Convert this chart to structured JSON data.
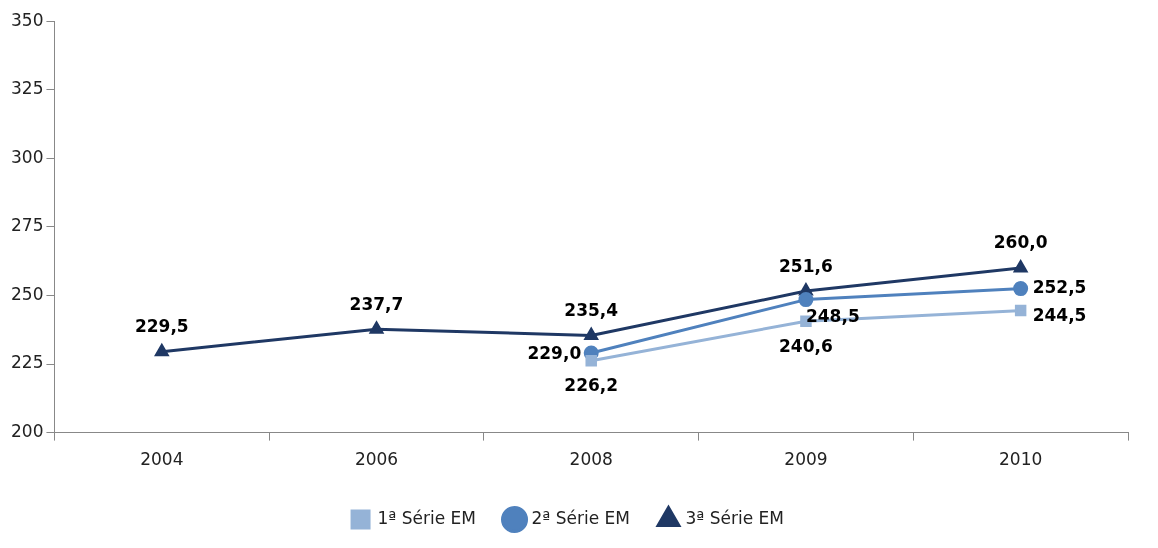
{
  "chart_data": {
    "type": "line",
    "categories": [
      "2004",
      "2006",
      "2008",
      "2009",
      "2010"
    ],
    "series": [
      {
        "name": "1ª Série EM",
        "color": "#95b3d7",
        "marker": "square",
        "values": [
          null,
          null,
          226.2,
          240.6,
          244.5
        ],
        "value_labels": [
          null,
          null,
          "226,2",
          "240,6",
          "244,5"
        ]
      },
      {
        "name": "2ª Série EM",
        "color": "#4f81bd",
        "marker": "circle",
        "values": [
          null,
          null,
          229.0,
          248.5,
          252.5
        ],
        "value_labels": [
          null,
          null,
          "229,0",
          "248,5",
          "252,5"
        ]
      },
      {
        "name": "3ª Série EM",
        "color": "#1f3864",
        "marker": "triangle",
        "values": [
          229.5,
          237.7,
          235.4,
          251.6,
          260.0
        ],
        "value_labels": [
          "229,5",
          "237,7",
          "235,4",
          "251,6",
          "260,0"
        ]
      }
    ],
    "ylim": [
      200,
      350
    ],
    "yticks": [
      200,
      225,
      250,
      275,
      300,
      325,
      350
    ],
    "grid": false,
    "legend": "bottom"
  }
}
